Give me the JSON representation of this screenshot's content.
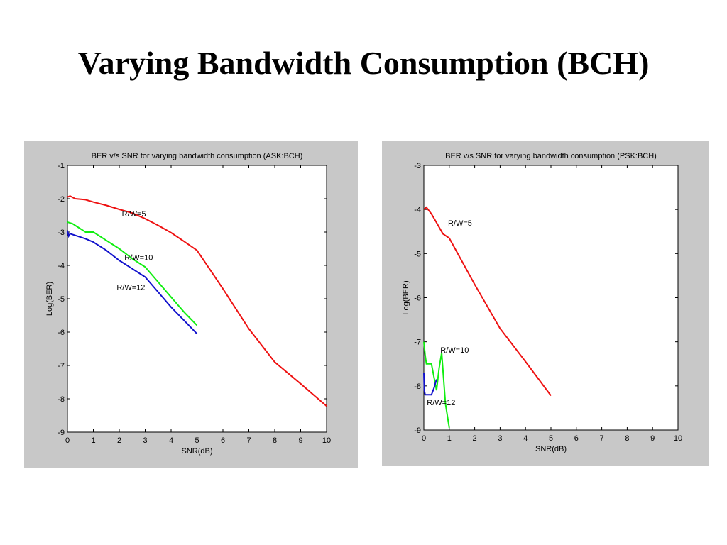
{
  "slide": {
    "title": "Varying Bandwidth Consumption (BCH)"
  },
  "chart_data": [
    {
      "type": "line",
      "title": "BER v/s SNR for varying bandwidth consumption (ASK:BCH)",
      "xlabel": "SNR(dB)",
      "ylabel": "Log(BER)",
      "xlim": [
        0,
        10
      ],
      "ylim": [
        -9,
        -1
      ],
      "xticks": [
        0,
        1,
        2,
        3,
        4,
        5,
        6,
        7,
        8,
        9,
        10
      ],
      "yticks": [
        -1,
        -2,
        -3,
        -4,
        -5,
        -6,
        -7,
        -8,
        -9
      ],
      "grid": false,
      "series": [
        {
          "name": "R/W=5",
          "color": "#ee1111",
          "x": [
            0,
            0.1,
            0.3,
            0.7,
            1,
            1.5,
            2,
            2.5,
            3,
            3.5,
            4,
            4.5,
            5,
            6,
            7,
            8,
            9,
            10
          ],
          "y": [
            -1.95,
            -1.92,
            -2.0,
            -2.03,
            -2.1,
            -2.2,
            -2.32,
            -2.43,
            -2.6,
            -2.8,
            -3.02,
            -3.28,
            -3.55,
            -4.7,
            -5.9,
            -6.9,
            -7.55,
            -8.22
          ]
        },
        {
          "name": "R/W=10",
          "color": "#11ee11",
          "x": [
            0,
            0.2,
            0.4,
            0.7,
            1,
            1.5,
            2,
            2.5,
            3,
            3.5,
            4,
            4.5,
            5
          ],
          "y": [
            -2.7,
            -2.75,
            -2.85,
            -3.0,
            -3.0,
            -3.25,
            -3.5,
            -3.8,
            -4.05,
            -4.5,
            -4.95,
            -5.4,
            -5.8
          ]
        },
        {
          "name": "R/W=12",
          "color": "#1111cc",
          "x": [
            0,
            0.05,
            0.1,
            0.3,
            0.5,
            0.7,
            1,
            1.5,
            2,
            2.5,
            3,
            3.5,
            4,
            4.5,
            5
          ],
          "y": [
            -2.95,
            -3.12,
            -3.05,
            -3.1,
            -3.15,
            -3.2,
            -3.3,
            -3.55,
            -3.85,
            -4.1,
            -4.35,
            -4.8,
            -5.25,
            -5.65,
            -6.05
          ]
        }
      ],
      "annotations": [
        {
          "text": "R/W=5",
          "x": 2.1,
          "y": -2.45
        },
        {
          "text": "R/W=10",
          "x": 2.2,
          "y": -3.75
        },
        {
          "text": "R/W=12",
          "x": 1.9,
          "y": -4.65
        }
      ]
    },
    {
      "type": "line",
      "title": "BER v/s SNR for varying bandwidth consumption (PSK:BCH)",
      "xlabel": "SNR(dB)",
      "ylabel": "Log(BER)",
      "xlim": [
        0,
        10
      ],
      "ylim": [
        -9,
        -3
      ],
      "xticks": [
        0,
        1,
        2,
        3,
        4,
        5,
        6,
        7,
        8,
        9,
        10
      ],
      "yticks": [
        -3,
        -4,
        -5,
        -6,
        -7,
        -8,
        -9
      ],
      "grid": false,
      "series": [
        {
          "name": "R/W=5",
          "color": "#ee1111",
          "x": [
            0,
            0.1,
            0.3,
            0.5,
            0.75,
            1.0,
            2.0,
            3.0,
            4.0,
            5.0
          ],
          "y": [
            -4.0,
            -3.95,
            -4.1,
            -4.3,
            -4.55,
            -4.65,
            -5.7,
            -6.7,
            -7.45,
            -8.22
          ]
        },
        {
          "name": "R/W=10",
          "color": "#11ee11",
          "x": [
            0,
            0.05,
            0.1,
            0.2,
            0.3,
            0.4,
            0.5,
            0.6,
            0.7,
            0.85,
            1.0
          ],
          "y": [
            -7.0,
            -7.3,
            -7.5,
            -7.5,
            -7.5,
            -7.8,
            -8.1,
            -7.6,
            -7.25,
            -8.4,
            -8.95
          ]
        },
        {
          "name": "R/W=12",
          "color": "#1111cc",
          "x": [
            0,
            0.02,
            0.05,
            0.1,
            0.2,
            0.3,
            0.4,
            0.5
          ],
          "y": [
            -7.7,
            -8.1,
            -8.2,
            -8.2,
            -8.2,
            -8.2,
            -8.05,
            -7.85
          ]
        }
      ],
      "annotations": [
        {
          "text": "R/W=5",
          "x": 0.95,
          "y": -4.3
        },
        {
          "text": "R/W=10",
          "x": 0.65,
          "y": -7.18
        },
        {
          "text": "R/W=12",
          "x": 0.12,
          "y": -8.37
        }
      ]
    }
  ]
}
